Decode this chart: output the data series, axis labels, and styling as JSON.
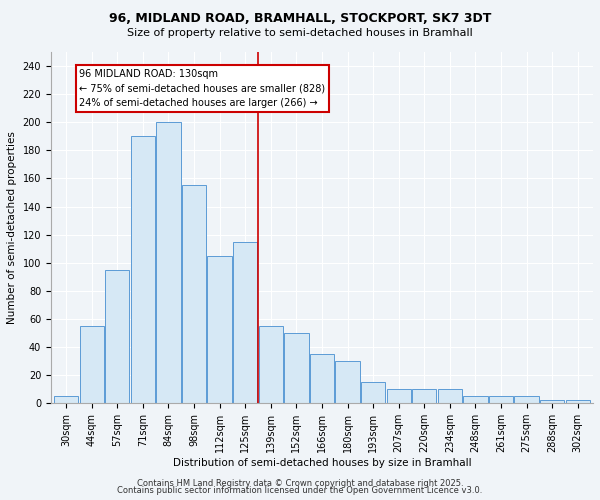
{
  "title": "96, MIDLAND ROAD, BRAMHALL, STOCKPORT, SK7 3DT",
  "subtitle": "Size of property relative to semi-detached houses in Bramhall",
  "xlabel": "Distribution of semi-detached houses by size in Bramhall",
  "ylabel": "Number of semi-detached properties",
  "categories": [
    "30sqm",
    "44sqm",
    "57sqm",
    "71sqm",
    "84sqm",
    "98sqm",
    "112sqm",
    "125sqm",
    "139sqm",
    "152sqm",
    "166sqm",
    "180sqm",
    "193sqm",
    "207sqm",
    "220sqm",
    "234sqm",
    "248sqm",
    "261sqm",
    "275sqm",
    "288sqm",
    "302sqm"
  ],
  "values": [
    5,
    55,
    95,
    190,
    200,
    155,
    105,
    115,
    55,
    50,
    35,
    30,
    15,
    10,
    10,
    10,
    5,
    5,
    5,
    2,
    2
  ],
  "bar_color": "#d6e8f5",
  "bar_edge_color": "#5b9bd5",
  "vline_color": "#cc0000",
  "annotation_title": "96 MIDLAND ROAD: 130sqm",
  "annotation_line1": "← 75% of semi-detached houses are smaller (828)",
  "annotation_line2": "24% of semi-detached houses are larger (266) →",
  "annotation_box_color": "#ffffff",
  "annotation_box_edge": "#cc0000",
  "ylim": [
    0,
    250
  ],
  "yticks": [
    0,
    20,
    40,
    60,
    80,
    100,
    120,
    140,
    160,
    180,
    200,
    220,
    240
  ],
  "footer1": "Contains HM Land Registry data © Crown copyright and database right 2025.",
  "footer2": "Contains public sector information licensed under the Open Government Licence v3.0.",
  "bg_color": "#f0f4f8",
  "plot_bg_color": "#f0f4f8",
  "grid_color": "#ffffff",
  "title_fontsize": 9,
  "subtitle_fontsize": 8,
  "axis_fontsize": 7.5,
  "tick_fontsize": 7,
  "footer_fontsize": 6
}
